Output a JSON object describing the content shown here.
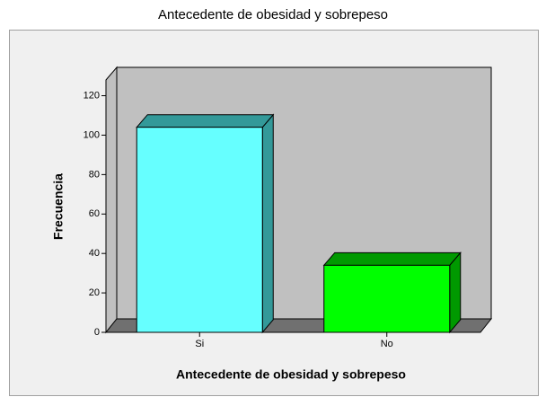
{
  "chart_data": {
    "type": "bar3d",
    "title": "Antecedente de obesidad y sobrepeso",
    "x_label": "Antecedente de obesidad y sobrepeso",
    "y_label": "Frecuencia",
    "categories": [
      "Si",
      "No"
    ],
    "values": [
      104,
      34
    ],
    "colors": [
      "#66ffff",
      "#00ff00"
    ],
    "side_colors": [
      "#339999",
      "#009900"
    ],
    "ylim": [
      0,
      128
    ],
    "yticks": [
      0,
      20,
      40,
      60,
      80,
      100,
      120
    ],
    "grid": false
  }
}
